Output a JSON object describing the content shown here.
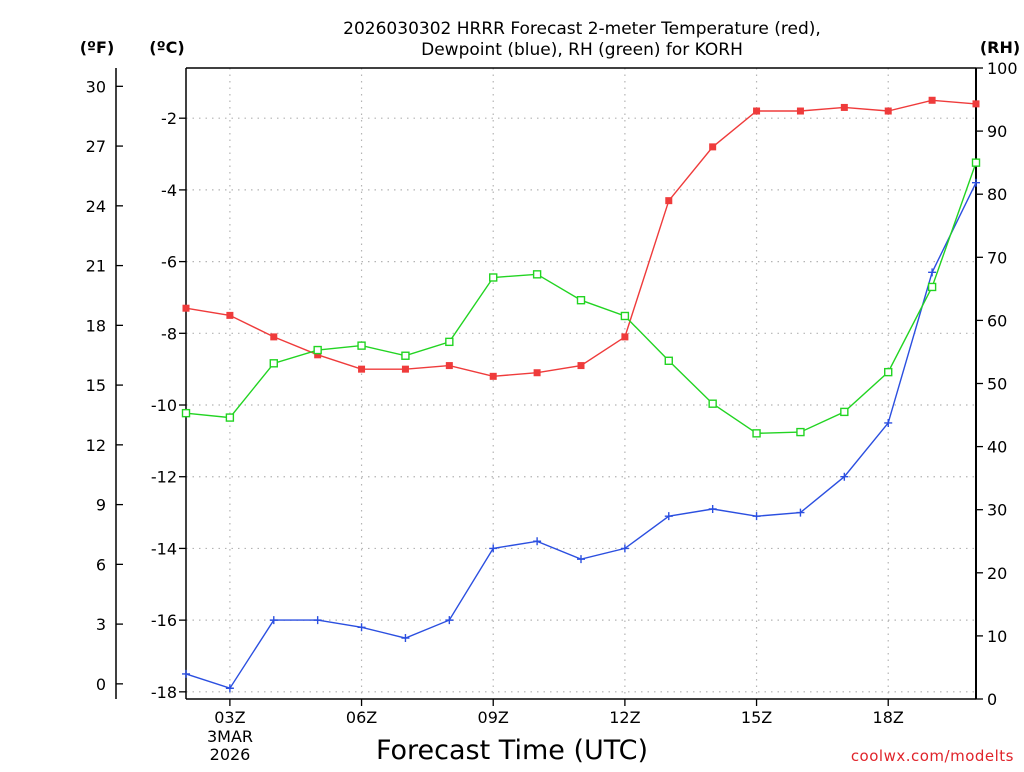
{
  "chart_data": {
    "type": "line",
    "title": [
      "2026030302 HRRR Forecast 2-meter Temperature (red),",
      "Dewpoint (blue), RH (green) for KORH"
    ],
    "units": {
      "fahrenheit": "(ºF)",
      "celsius": "(ºC)",
      "rh": "(RH)"
    },
    "xlabel": "Forecast Time (UTC)",
    "x_hours": [
      2,
      3,
      4,
      5,
      6,
      7,
      8,
      9,
      10,
      11,
      12,
      13,
      14,
      15,
      16,
      17,
      18,
      19,
      20
    ],
    "xlim": [
      2,
      20
    ],
    "x_ticks": [
      {
        "hour": 3,
        "label": "03Z"
      },
      {
        "hour": 6,
        "label": "06Z"
      },
      {
        "hour": 9,
        "label": "09Z"
      },
      {
        "hour": 12,
        "label": "12Z"
      },
      {
        "hour": 15,
        "label": "15Z"
      },
      {
        "hour": 18,
        "label": "18Z"
      }
    ],
    "date_label": [
      "3MAR",
      "2026"
    ],
    "celsius_axis": {
      "ylim": [
        -18.2,
        -0.6
      ],
      "ticks": [
        -18,
        -16,
        -14,
        -12,
        -10,
        -8,
        -6,
        -4,
        -2
      ]
    },
    "fahrenheit_axis": {
      "ticks": [
        0,
        3,
        6,
        9,
        12,
        15,
        18,
        21,
        24,
        27,
        30
      ]
    },
    "rh_axis": {
      "ylim": [
        0,
        100
      ],
      "ticks": [
        0,
        10,
        20,
        30,
        40,
        50,
        60,
        70,
        80,
        90,
        100
      ]
    },
    "series": [
      {
        "name": "Temperature",
        "unit": "C",
        "color": "#ef3b3b",
        "marker": "filled-square",
        "values": [
          -7.3,
          -7.5,
          -8.1,
          -8.6,
          -9.0,
          -9.0,
          -8.9,
          -9.2,
          -9.1,
          -8.9,
          -8.1,
          -4.3,
          -2.8,
          -1.8,
          -1.8,
          -1.7,
          -1.8,
          -1.5,
          -1.6
        ]
      },
      {
        "name": "Dewpoint",
        "unit": "C",
        "color": "#2b4fe0",
        "marker": "plus",
        "values": [
          -17.5,
          -17.9,
          -16.0,
          -16.0,
          -16.2,
          -16.5,
          -16.0,
          -14.0,
          -13.8,
          -14.3,
          -14.0,
          -13.1,
          -12.9,
          -13.1,
          -13.0,
          -12.0,
          -10.5,
          -6.3,
          -3.8
        ]
      },
      {
        "name": "RH",
        "unit": "%",
        "color": "#22d422",
        "marker": "open-square",
        "values": [
          45.3,
          44.6,
          53.2,
          55.3,
          56.0,
          54.4,
          56.6,
          66.8,
          67.3,
          63.2,
          60.7,
          53.6,
          46.8,
          42.1,
          42.3,
          45.5,
          51.8,
          65.3,
          85.0
        ]
      }
    ],
    "grid": true,
    "credit": "coolwx.com/modelts"
  }
}
